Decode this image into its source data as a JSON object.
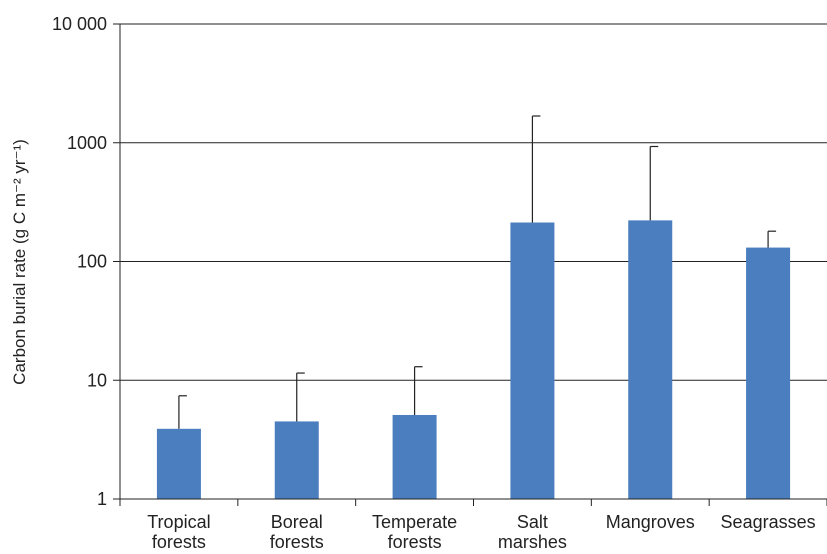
{
  "chart_data": {
    "type": "bar",
    "categories": [
      [
        "Tropical",
        "forests"
      ],
      [
        "Boreal",
        "forests"
      ],
      [
        "Temperate",
        "forests"
      ],
      [
        "Salt",
        "marshes"
      ],
      [
        "Mangroves"
      ],
      [
        "Seagrasses"
      ]
    ],
    "values": [
      3.9,
      4.5,
      5.1,
      213,
      222,
      131
    ],
    "error_upper": [
      7.4,
      11.5,
      13.0,
      1680,
      930,
      180
    ],
    "ylabel": "Carbon burial rate (g C m⁻² yr⁻¹)",
    "ylim": [
      1,
      10000
    ],
    "yscale": "log",
    "yticks": [
      1,
      10,
      100,
      1000,
      10000
    ],
    "ytick_labels": [
      "1",
      "10",
      "100",
      "1000",
      "10 000"
    ],
    "grid": "horizontal",
    "colors": {
      "bar": "#4a7ebf",
      "error": "#222222",
      "grid": "#222222"
    }
  }
}
